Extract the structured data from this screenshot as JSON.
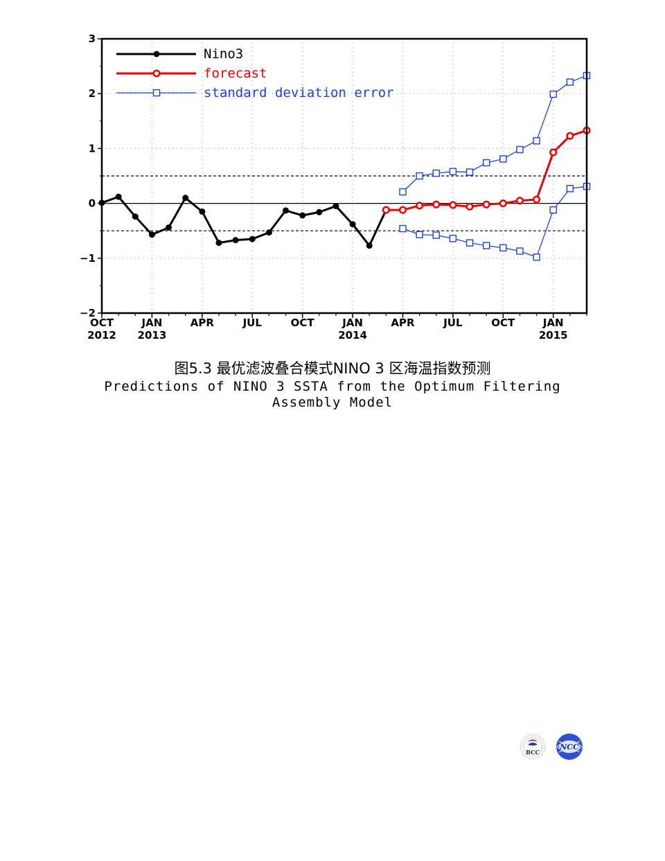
{
  "chart_data": {
    "type": "line",
    "x_ticks": [
      {
        "month": 0,
        "label": "OCT",
        "year": "2012"
      },
      {
        "month": 3,
        "label": "JAN",
        "year": "2013"
      },
      {
        "month": 6,
        "label": "APR",
        "year": ""
      },
      {
        "month": 9,
        "label": "JUL",
        "year": ""
      },
      {
        "month": 12,
        "label": "OCT",
        "year": ""
      },
      {
        "month": 15,
        "label": "JAN",
        "year": "2014"
      },
      {
        "month": 18,
        "label": "APR",
        "year": ""
      },
      {
        "month": 21,
        "label": "JUL",
        "year": ""
      },
      {
        "month": 24,
        "label": "OCT",
        "year": ""
      },
      {
        "month": 27,
        "label": "JAN",
        "year": "2015"
      }
    ],
    "xlim": [
      0,
      29
    ],
    "ylim": [
      -2,
      3
    ],
    "y_ticks": [
      "3",
      "2",
      "1",
      "0",
      "−1",
      "−2"
    ],
    "y_tick_values": [
      3,
      2,
      1,
      0,
      -1,
      -2
    ],
    "reference_lines": [
      {
        "y": 0,
        "style": "solid"
      },
      {
        "y": 0.5,
        "style": "dashed"
      },
      {
        "y": -0.5,
        "style": "dashed"
      }
    ],
    "grid": "dotted",
    "legend_position": "top-left",
    "series": [
      {
        "name": "Nino3",
        "color": "#000000",
        "marker": "filled-circle",
        "x": [
          0,
          1,
          2,
          3,
          4,
          5,
          6,
          7,
          8,
          9,
          10,
          11,
          12,
          13,
          14,
          15,
          16,
          17
        ],
        "values": [
          0.01,
          0.12,
          -0.24,
          -0.57,
          -0.44,
          0.1,
          -0.15,
          -0.72,
          -0.67,
          -0.65,
          -0.53,
          -0.13,
          -0.22,
          -0.16,
          -0.05,
          -0.38,
          -0.77,
          -0.12
        ]
      },
      {
        "name": "forecast",
        "color": "#ee0000",
        "marker": "open-circle",
        "x": [
          17,
          18,
          19,
          20,
          21,
          22,
          23,
          24,
          25,
          26,
          27,
          28,
          29
        ],
        "values": [
          -0.12,
          -0.12,
          -0.04,
          -0.02,
          -0.03,
          -0.06,
          -0.02,
          0.0,
          0.05,
          0.07,
          0.93,
          1.23,
          1.33
        ]
      },
      {
        "name": "standard deviation error",
        "color": "#1f3fe0",
        "marker": "open-square",
        "x": [
          18,
          19,
          20,
          21,
          22,
          23,
          24,
          25,
          26,
          27,
          28,
          29
        ],
        "values": [
          0.21,
          0.5,
          0.55,
          0.58,
          0.57,
          0.74,
          0.81,
          0.98,
          1.14,
          1.99,
          2.21,
          2.33
        ],
        "lower": [
          -0.46,
          -0.57,
          -0.58,
          -0.64,
          -0.72,
          -0.77,
          -0.81,
          -0.87,
          -0.98,
          -0.12,
          0.27,
          0.31
        ]
      }
    ]
  },
  "caption": {
    "chinese": "图5.3  最优滤波叠合模式NINO 3 区海温指数预测",
    "english_line1": "Predictions of NINO 3 SSTA from the Optimum Filtering",
    "english_line2": "Assembly Model"
  },
  "logos": {
    "left_text": "BCC",
    "right_text": "NCC"
  }
}
